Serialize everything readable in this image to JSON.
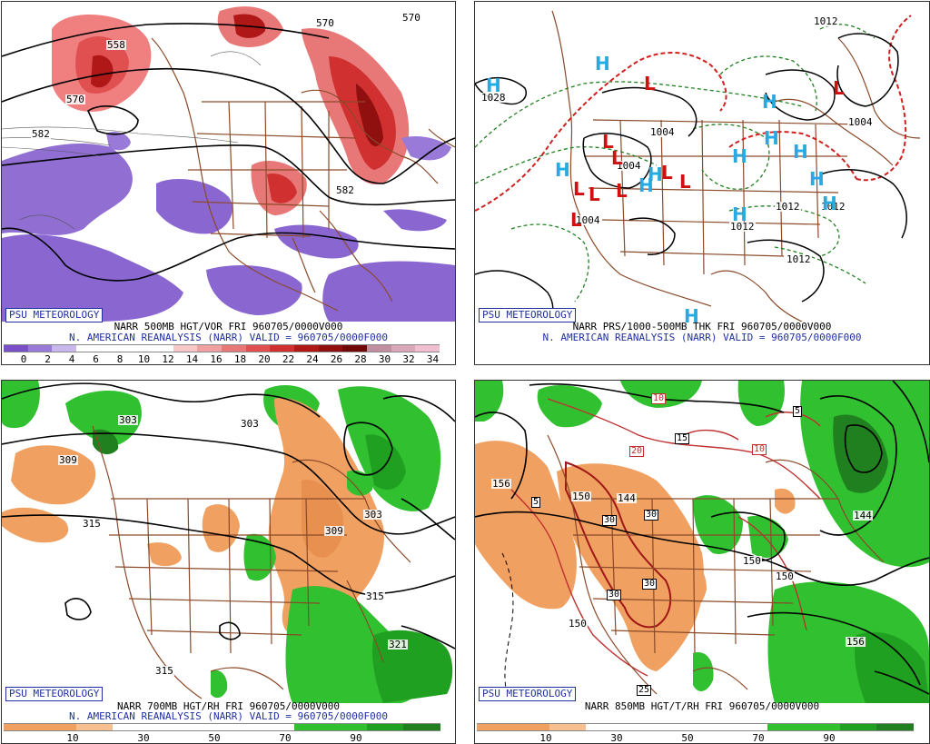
{
  "watermark": "PSU METEOROLOGY",
  "panels": {
    "p500": {
      "line1": "NARR 500MB HGT/VOR FRI 960705/0000V000",
      "line2": "N. AMERICAN REANALYSIS (NARR) VALID = 960705/0000F000",
      "ticks": [
        "0",
        "2",
        "4",
        "6",
        "8",
        "10",
        "12",
        "14",
        "16",
        "18",
        "20",
        "22",
        "24",
        "26",
        "28",
        "30",
        "32",
        "34"
      ],
      "contour_labels": [
        "558",
        "570",
        "582",
        "582",
        "570",
        "570"
      ]
    },
    "pthk": {
      "line1": "NARR PRS/1000-500MB THK FRI 960705/0000V000",
      "line2": "N. AMERICAN REANALYSIS (NARR) VALID = 960705/0000F000",
      "pressure_labels": [
        "1028",
        "1004",
        "1004",
        "1012",
        "1012",
        "1012",
        "1004",
        "1012",
        "1012",
        "1004"
      ],
      "highs": [
        "H",
        "H",
        "H",
        "H",
        "H",
        "H",
        "H",
        "H",
        "H",
        "H",
        "H",
        "H",
        "H"
      ],
      "lows": [
        "L",
        "L",
        "L",
        "L",
        "L",
        "L",
        "L",
        "L",
        "L",
        "L"
      ]
    },
    "p700": {
      "line1": "NARR 700MB HGT/RH FRI 960705/0000V000",
      "line2": "N. AMERICAN REANALYSIS (NARR) VALID = 960705/0000F000",
      "ticks": [
        "10",
        "30",
        "50",
        "70",
        "90"
      ],
      "contour_labels": [
        "309",
        "303",
        "303",
        "315",
        "309",
        "303",
        "315",
        "321",
        "315"
      ]
    },
    "p850": {
      "line1": "NARR 850MB HGT/T/RH FRI 960705/0000V000",
      "ticks": [
        "10",
        "30",
        "50",
        "70",
        "90"
      ],
      "contour_labels": [
        "156",
        "150",
        "144",
        "150",
        "150",
        "144",
        "150",
        "156"
      ],
      "temp_labels": [
        "10",
        "10",
        "15",
        "20",
        "5",
        "30",
        "30",
        "30",
        "30",
        "25",
        "5"
      ]
    }
  },
  "colors": {
    "vor_scale": [
      "#7a50c8",
      "#9a7ad8",
      "#c8b8ec",
      "#ffffff",
      "#ffffff",
      "#ffffff",
      "#ffffff",
      "#f8c8c8",
      "#f0a0a0",
      "#e87878",
      "#e05050",
      "#d03030",
      "#b01818",
      "#901010",
      "#700808",
      "#c090a0",
      "#d8a8b8",
      "#f0c0d0"
    ],
    "rh_scale": [
      "#f0a060",
      "#f0a060",
      "#f8c090",
      "#ffffff",
      "#ffffff",
      "#ffffff",
      "#ffffff",
      "#ffffff",
      "#30c030",
      "#30c030",
      "#20a020",
      "#208020"
    ],
    "map_line": "#8b4a2a",
    "height_contour": "#000000",
    "thickness_contour": "#d02020",
    "pressure_contour": "#208020"
  }
}
